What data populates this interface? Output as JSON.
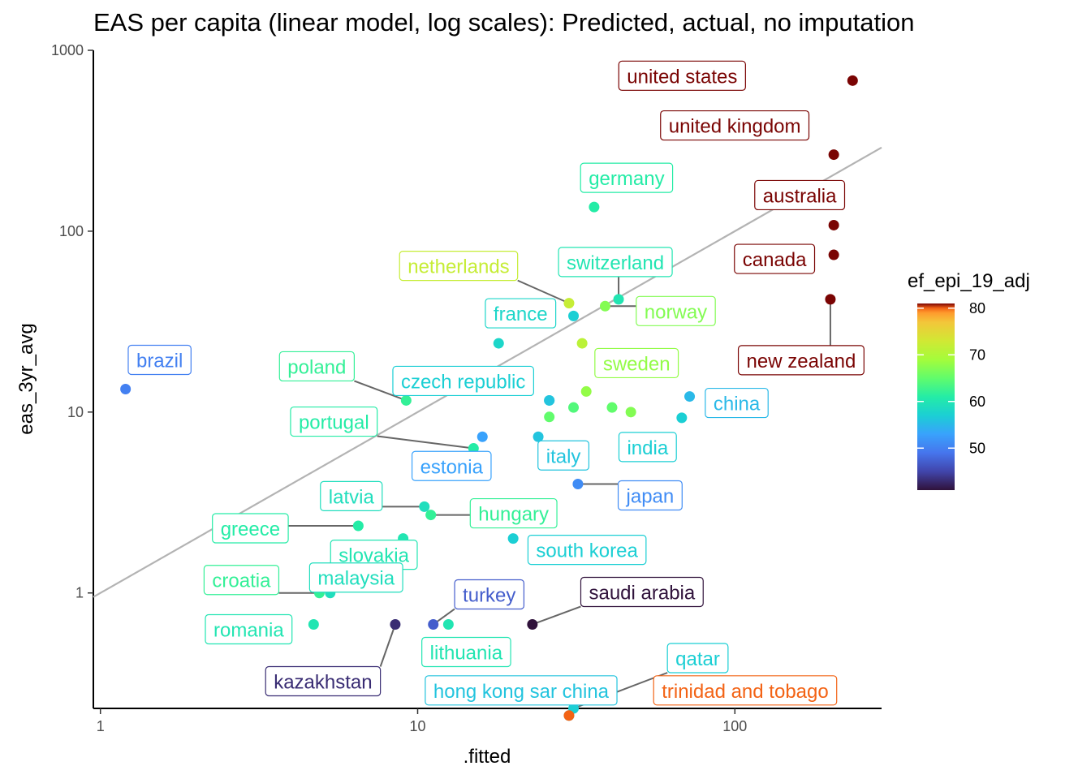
{
  "chart_data": {
    "type": "scatter",
    "title": "EAS per capita (linear model, log scales): Predicted, actual, no imputation",
    "xlabel": ".fitted",
    "ylabel": "eas_3yr_avg",
    "x_scale": "log10",
    "y_scale": "log10",
    "xlim": [
      0.95,
      290
    ],
    "ylim": [
      0.23,
      1000
    ],
    "x_ticks": [
      1,
      10,
      100
    ],
    "x_tick_labels": [
      "1",
      "10",
      "100"
    ],
    "y_ticks": [
      1,
      10,
      100,
      1000
    ],
    "y_tick_labels": [
      "1",
      "10",
      "100",
      "1000"
    ],
    "reference_line": {
      "kind": "y = x",
      "color": "#b3b3b3"
    },
    "grid": false,
    "color_legend": {
      "title": "ef_epi_19_adj",
      "range": [
        41,
        81
      ],
      "ticks": [
        50,
        60,
        70,
        80
      ],
      "tick_labels": [
        "50",
        "60",
        "70",
        "80"
      ],
      "placement": "right"
    },
    "points": [
      {
        "label": "united states",
        "x": 235,
        "y": 680,
        "c": 81
      },
      {
        "label": "united kingdom",
        "x": 205,
        "y": 265,
        "c": 81
      },
      {
        "label": "australia",
        "x": 205,
        "y": 108,
        "c": 81
      },
      {
        "label": "canada",
        "x": 205,
        "y": 74,
        "c": 81
      },
      {
        "label": "new zealand",
        "x": 200,
        "y": 42,
        "c": 81
      },
      {
        "label": "germany",
        "x": 36,
        "y": 136,
        "c": 61
      },
      {
        "label": "netherlands",
        "x": 30,
        "y": 40,
        "c": 72
      },
      {
        "label": "switzerland",
        "x": 43,
        "y": 42,
        "c": 60
      },
      {
        "label": "norway",
        "x": 39,
        "y": 38.5,
        "c": 67
      },
      {
        "label": "france",
        "x": 18,
        "y": 24,
        "c": 58
      },
      {
        "label": "sweden",
        "x": 34,
        "y": 13,
        "c": 68
      },
      {
        "label": "poland",
        "x": 9.2,
        "y": 11.6,
        "c": 62
      },
      {
        "label": "czech republic",
        "x": 26,
        "y": 11.6,
        "c": 57
      },
      {
        "label": "brazil",
        "x": 1.2,
        "y": 13.4,
        "c": 50
      },
      {
        "label": "china",
        "x": 72,
        "y": 12.2,
        "c": 55
      },
      {
        "label": "india",
        "x": 68,
        "y": 9.3,
        "c": 57
      },
      {
        "label": "portugal",
        "x": 15,
        "y": 6.3,
        "c": 61
      },
      {
        "label": "estonia",
        "x": 16,
        "y": 7.3,
        "c": 53
      },
      {
        "label": "italy",
        "x": 24,
        "y": 7.3,
        "c": 56
      },
      {
        "label": "japan",
        "x": 32,
        "y": 4.0,
        "c": 51
      },
      {
        "label": "latvia",
        "x": 10.5,
        "y": 3.0,
        "c": 59
      },
      {
        "label": "hungary",
        "x": 11,
        "y": 2.7,
        "c": 62
      },
      {
        "label": "greece",
        "x": 6.5,
        "y": 2.35,
        "c": 61
      },
      {
        "label": "slovakia",
        "x": 9,
        "y": 2.0,
        "c": 60
      },
      {
        "label": "south korea",
        "x": 20,
        "y": 2.0,
        "c": 57
      },
      {
        "label": "croatia",
        "x": 4.9,
        "y": 1.0,
        "c": 62
      },
      {
        "label": "malaysia",
        "x": 5.3,
        "y": 1.0,
        "c": 59
      },
      {
        "label": "turkey",
        "x": 11.2,
        "y": 0.67,
        "c": 47
      },
      {
        "label": "saudi arabia",
        "x": 23,
        "y": 0.67,
        "c": 41
      },
      {
        "label": "romania",
        "x": 4.7,
        "y": 0.67,
        "c": 60
      },
      {
        "label": "kazakhstan",
        "x": 8.5,
        "y": 0.67,
        "c": 43
      },
      {
        "label": "lithuania",
        "x": 12.5,
        "y": 0.67,
        "c": 60
      },
      {
        "label": "qatar",
        "x": 31,
        "y": 0.23,
        "c": 57
      },
      {
        "label": "hong kong sar china",
        "x": 30,
        "y": 0.21,
        "c": 56
      },
      {
        "label": "trinidad and tobago",
        "x": 30,
        "y": 0.21,
        "c": 80
      },
      {
        "label": "",
        "x": 41,
        "y": 10.6,
        "c": 65
      },
      {
        "label": "",
        "x": 47,
        "y": 10.0,
        "c": 67
      },
      {
        "label": "",
        "x": 31,
        "y": 10.6,
        "c": 64
      },
      {
        "label": "",
        "x": 26,
        "y": 9.4,
        "c": 65
      },
      {
        "label": "",
        "x": 26,
        "y": 11.6,
        "c": 56
      },
      {
        "label": "",
        "x": 33,
        "y": 24,
        "c": 71
      },
      {
        "label": "",
        "x": 31,
        "y": 34,
        "c": 57
      }
    ]
  }
}
